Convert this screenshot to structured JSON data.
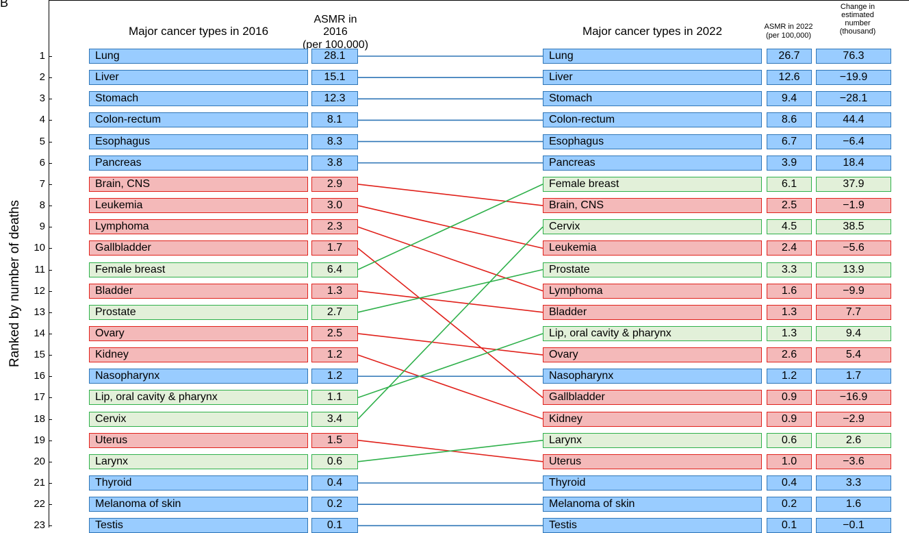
{
  "panel_label": "B",
  "y_axis_label": "Ranked by number of deaths",
  "headers": {
    "names_2016": "Major cancer types in 2016",
    "asmr_2016": [
      "ASMR in 2016",
      "(per 100,000)"
    ],
    "names_2022": "Major cancer types in 2022",
    "asmr_2022": [
      "ASMR in 2022",
      "(per 100,000)"
    ],
    "change": [
      "Change in",
      "estimated",
      "number",
      "(thousand)"
    ]
  },
  "colors": {
    "blue_fill": "#99ccff",
    "blue_border": "#2e75b6",
    "red_fill": "#f4b9b9",
    "red_border": "#e0201a",
    "green_fill": "#e2f0d9",
    "green_border": "#2eb04a"
  },
  "ranks": [
    "1",
    "2",
    "3",
    "4",
    "5",
    "6",
    "7",
    "8",
    "9",
    "10",
    "11",
    "12",
    "13",
    "14",
    "15",
    "16",
    "17",
    "18",
    "19",
    "20",
    "21",
    "22",
    "23"
  ],
  "left_2016": [
    {
      "name": "Lung",
      "asmr": "28.1",
      "color": "blue"
    },
    {
      "name": "Liver",
      "asmr": "15.1",
      "color": "blue"
    },
    {
      "name": "Stomach",
      "asmr": "12.3",
      "color": "blue"
    },
    {
      "name": "Colon-rectum",
      "asmr": "8.1",
      "color": "blue"
    },
    {
      "name": "Esophagus",
      "asmr": "8.3",
      "color": "blue"
    },
    {
      "name": "Pancreas",
      "asmr": "3.8",
      "color": "blue"
    },
    {
      "name": "Brain, CNS",
      "asmr": "2.9",
      "color": "red"
    },
    {
      "name": "Leukemia",
      "asmr": "3.0",
      "color": "red"
    },
    {
      "name": "Lymphoma",
      "asmr": "2.3",
      "color": "red"
    },
    {
      "name": "Gallbladder",
      "asmr": "1.7",
      "color": "red"
    },
    {
      "name": "Female breast",
      "asmr": "6.4",
      "color": "green"
    },
    {
      "name": "Bladder",
      "asmr": "1.3",
      "color": "red"
    },
    {
      "name": "Prostate",
      "asmr": "2.7",
      "color": "green"
    },
    {
      "name": "Ovary",
      "asmr": "2.5",
      "color": "red"
    },
    {
      "name": "Kidney",
      "asmr": "1.2",
      "color": "red"
    },
    {
      "name": "Nasopharynx",
      "asmr": "1.2",
      "color": "blue"
    },
    {
      "name": "Lip, oral cavity & pharynx",
      "asmr": "1.1",
      "color": "green"
    },
    {
      "name": "Cervix",
      "asmr": "3.4",
      "color": "green"
    },
    {
      "name": "Uterus",
      "asmr": "1.5",
      "color": "red"
    },
    {
      "name": "Larynx",
      "asmr": "0.6",
      "color": "green"
    },
    {
      "name": "Thyroid",
      "asmr": "0.4",
      "color": "blue"
    },
    {
      "name": "Melanoma of skin",
      "asmr": "0.2",
      "color": "blue"
    },
    {
      "name": "Testis",
      "asmr": "0.1",
      "color": "blue"
    }
  ],
  "right_2022": [
    {
      "name": "Lung",
      "asmr": "26.7",
      "change": "76.3",
      "color": "blue"
    },
    {
      "name": "Liver",
      "asmr": "12.6",
      "change": "−19.9",
      "color": "blue"
    },
    {
      "name": "Stomach",
      "asmr": "9.4",
      "change": "−28.1",
      "color": "blue"
    },
    {
      "name": "Colon-rectum",
      "asmr": "8.6",
      "change": "44.4",
      "color": "blue"
    },
    {
      "name": "Esophagus",
      "asmr": "6.7",
      "change": "−6.4",
      "color": "blue"
    },
    {
      "name": "Pancreas",
      "asmr": "3.9",
      "change": "18.4",
      "color": "blue"
    },
    {
      "name": "Female breast",
      "asmr": "6.1",
      "change": "37.9",
      "color": "green"
    },
    {
      "name": "Brain, CNS",
      "asmr": "2.5",
      "change": "−1.9",
      "color": "red"
    },
    {
      "name": "Cervix",
      "asmr": "4.5",
      "change": "38.5",
      "color": "green"
    },
    {
      "name": "Leukemia",
      "asmr": "2.4",
      "change": "−5.6",
      "color": "red"
    },
    {
      "name": "Prostate",
      "asmr": "3.3",
      "change": "13.9",
      "color": "green"
    },
    {
      "name": "Lymphoma",
      "asmr": "1.6",
      "change": "−9.9",
      "color": "red"
    },
    {
      "name": "Bladder",
      "asmr": "1.3",
      "change": "7.7",
      "color": "red"
    },
    {
      "name": "Lip, oral cavity & pharynx",
      "asmr": "1.3",
      "change": "9.4",
      "color": "green"
    },
    {
      "name": "Ovary",
      "asmr": "2.6",
      "change": "5.4",
      "color": "red"
    },
    {
      "name": "Nasopharynx",
      "asmr": "1.2",
      "change": "1.7",
      "color": "blue"
    },
    {
      "name": "Gallbladder",
      "asmr": "0.9",
      "change": "−16.9",
      "color": "red"
    },
    {
      "name": "Kidney",
      "asmr": "0.9",
      "change": "−2.9",
      "color": "red"
    },
    {
      "name": "Larynx",
      "asmr": "0.6",
      "change": "2.6",
      "color": "green"
    },
    {
      "name": "Uterus",
      "asmr": "1.0",
      "change": "−3.6",
      "color": "red"
    },
    {
      "name": "Thyroid",
      "asmr": "0.4",
      "change": "3.3",
      "color": "blue"
    },
    {
      "name": "Melanoma of skin",
      "asmr": "0.2",
      "change": "1.6",
      "color": "blue"
    },
    {
      "name": "Testis",
      "asmr": "0.1",
      "change": "−0.1",
      "color": "blue"
    }
  ]
}
